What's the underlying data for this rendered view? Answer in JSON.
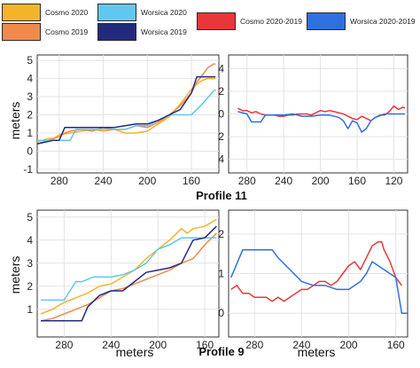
{
  "legend": {
    "items": [
      {
        "label": "Cosmo 2020",
        "color": "#f3b42a"
      },
      {
        "label": "Worsica 2020",
        "color": "#5fc8ee"
      },
      {
        "label": "Cosmo 2020-2019",
        "color": "#e8373b"
      },
      {
        "label": "Worsica 2020-2019",
        "color": "#2f6fe0"
      },
      {
        "label": "Cosmo 2019",
        "color": "#f08a4b"
      },
      {
        "label": "Worsica 2019",
        "color": "#232a7e"
      }
    ]
  },
  "chart_data": [
    {
      "type": "line",
      "panel": "profile-11-elevation",
      "ylabel": "meters",
      "xlabel": "",
      "title": "Profile 11",
      "xlim": [
        300,
        135
      ],
      "ylim": [
        -1.2,
        5.3
      ],
      "xticks": [
        280,
        240,
        200,
        160
      ],
      "yticks": [
        -1,
        0,
        1,
        2,
        3,
        4,
        5
      ],
      "grid": true,
      "series": [
        {
          "name": "Cosmo 2020",
          "color": "#f3b42a",
          "x": [
            300,
            290,
            285,
            280,
            270,
            260,
            250,
            240,
            230,
            220,
            210,
            200,
            190,
            180,
            170,
            165,
            160,
            155,
            150,
            145,
            140,
            138
          ],
          "y": [
            0.5,
            0.7,
            0.7,
            0.9,
            1.0,
            1.1,
            1.2,
            1.1,
            1.2,
            1.0,
            1.0,
            1.1,
            1.5,
            1.9,
            2.6,
            3.0,
            3.4,
            3.7,
            3.9,
            4.0,
            4.0,
            4.0
          ]
        },
        {
          "name": "Cosmo 2019",
          "color": "#f08a4b",
          "x": [
            300,
            290,
            280,
            275,
            270,
            260,
            250,
            240,
            230,
            220,
            210,
            200,
            190,
            180,
            170,
            160,
            155,
            150,
            145,
            140,
            138
          ],
          "y": [
            0.4,
            0.6,
            0.8,
            1.0,
            1.1,
            1.2,
            1.1,
            1.3,
            1.2,
            1.2,
            1.4,
            1.3,
            1.6,
            2.0,
            2.5,
            3.2,
            3.8,
            4.2,
            4.6,
            4.8,
            4.8
          ]
        },
        {
          "name": "Worsica 2020",
          "color": "#5fc8ee",
          "x": [
            300,
            280,
            270,
            265,
            250,
            230,
            220,
            210,
            200,
            190,
            180,
            175,
            170,
            160,
            150,
            140,
            138
          ],
          "y": [
            0.6,
            0.6,
            0.6,
            1.2,
            1.2,
            1.2,
            1.2,
            1.4,
            1.4,
            1.7,
            2.0,
            2.0,
            2.0,
            2.0,
            2.6,
            3.3,
            3.4
          ]
        },
        {
          "name": "Worsica 2019",
          "color": "#232a7e",
          "x": [
            300,
            285,
            280,
            275,
            250,
            240,
            230,
            210,
            200,
            190,
            180,
            170,
            160,
            155,
            150,
            145,
            140,
            138
          ],
          "y": [
            0.4,
            0.6,
            0.6,
            1.3,
            1.3,
            1.3,
            1.3,
            1.5,
            1.5,
            1.7,
            2.0,
            2.3,
            3.2,
            4.1,
            4.1,
            4.1,
            4.1,
            4.1
          ]
        }
      ]
    },
    {
      "type": "line",
      "panel": "profile-11-difference",
      "xlabel": "",
      "ylabel": "",
      "xlim": [
        300,
        105
      ],
      "ylim": [
        -5.2,
        5.2
      ],
      "xticks": [
        280,
        240,
        200,
        160,
        120
      ],
      "yticks": [
        4,
        2,
        0,
        2,
        4
      ],
      "ytick_values": [
        4,
        2,
        0,
        -2,
        -4
      ],
      "grid": true,
      "series": [
        {
          "name": "Cosmo 2020-2019",
          "color": "#e8373b",
          "x": [
            290,
            285,
            280,
            275,
            270,
            265,
            260,
            255,
            250,
            245,
            240,
            235,
            230,
            225,
            220,
            215,
            210,
            205,
            200,
            195,
            190,
            185,
            180,
            175,
            170,
            165,
            160,
            155,
            150,
            145,
            140,
            135,
            130,
            125,
            120,
            115,
            110,
            108
          ],
          "y": [
            0.5,
            0.3,
            0.3,
            0.1,
            0.2,
            0.0,
            -0.1,
            -0.1,
            -0.1,
            -0.2,
            -0.2,
            -0.1,
            -0.1,
            0.0,
            0.0,
            0.0,
            -0.1,
            0.1,
            0.3,
            0.2,
            0.3,
            0.2,
            0.1,
            0.0,
            -0.2,
            -0.4,
            -0.5,
            -0.2,
            -0.4,
            -0.6,
            -0.3,
            -0.1,
            -0.1,
            0.2,
            0.7,
            0.4,
            0.6,
            0.5
          ]
        },
        {
          "name": "Worsica 2020-2019",
          "color": "#2f6fe0",
          "x": [
            290,
            280,
            275,
            270,
            265,
            260,
            250,
            240,
            230,
            220,
            210,
            200,
            190,
            180,
            175,
            170,
            165,
            160,
            155,
            150,
            145,
            140,
            130,
            120,
            110,
            108
          ],
          "y": [
            0.2,
            0.0,
            -0.7,
            -0.7,
            -0.7,
            -0.1,
            -0.1,
            -0.1,
            0.0,
            -0.2,
            -0.2,
            -0.1,
            -0.1,
            -0.3,
            -0.6,
            -1.3,
            -0.6,
            -0.8,
            -1.6,
            -1.3,
            -0.6,
            -0.3,
            0.0,
            0.0,
            0.0,
            0.0
          ]
        }
      ]
    },
    {
      "type": "line",
      "panel": "profile-9-elevation",
      "ylabel": "meters",
      "xlabel": "meters",
      "title": "Profile 9",
      "xlim": [
        303,
        148
      ],
      "ylim": [
        -0.2,
        5.3
      ],
      "xticks": [
        280,
        240,
        200,
        160
      ],
      "yticks": [
        1,
        2,
        3,
        4,
        5
      ],
      "grid": true,
      "series": [
        {
          "name": "Cosmo 2020",
          "color": "#f3b42a",
          "x": [
            300,
            290,
            280,
            270,
            260,
            250,
            240,
            230,
            220,
            210,
            200,
            190,
            180,
            175,
            170,
            160,
            150
          ],
          "y": [
            0.8,
            1.0,
            1.3,
            1.5,
            1.7,
            2.0,
            2.1,
            2.4,
            2.7,
            3.2,
            3.6,
            4.0,
            4.5,
            4.3,
            4.5,
            4.6,
            4.9
          ]
        },
        {
          "name": "Cosmo 2019",
          "color": "#f08a4b",
          "x": [
            300,
            290,
            280,
            270,
            260,
            250,
            240,
            230,
            220,
            210,
            200,
            190,
            180,
            170,
            160,
            150
          ],
          "y": [
            0.5,
            0.6,
            0.8,
            1.0,
            1.2,
            1.5,
            1.8,
            1.9,
            2.1,
            2.3,
            2.5,
            2.7,
            3.0,
            3.2,
            3.8,
            4.3
          ]
        },
        {
          "name": "Worsica 2020",
          "color": "#5fc8ee",
          "x": [
            300,
            285,
            280,
            270,
            265,
            255,
            240,
            230,
            220,
            210,
            200,
            190,
            180,
            170,
            160,
            150
          ],
          "y": [
            1.4,
            1.4,
            1.4,
            2.2,
            2.2,
            2.4,
            2.4,
            2.5,
            2.7,
            3.0,
            3.6,
            3.8,
            4.1,
            4.1,
            4.1,
            4.1
          ]
        },
        {
          "name": "Worsica 2019",
          "color": "#232a7e",
          "x": [
            300,
            290,
            280,
            265,
            260,
            250,
            240,
            230,
            220,
            210,
            200,
            190,
            180,
            175,
            170,
            160,
            150
          ],
          "y": [
            0.5,
            0.5,
            0.5,
            0.5,
            1.1,
            1.6,
            1.8,
            1.8,
            2.2,
            2.6,
            2.7,
            2.8,
            3.0,
            3.5,
            4.0,
            4.1,
            4.6
          ]
        }
      ]
    },
    {
      "type": "line",
      "panel": "profile-9-difference",
      "xlabel": "meters",
      "ylabel": "",
      "xlim": [
        302,
        150
      ],
      "ylim": [
        -0.6,
        2.6
      ],
      "xticks": [
        280,
        240,
        200,
        160
      ],
      "yticks": [
        0,
        1,
        2
      ],
      "grid": true,
      "series": [
        {
          "name": "Cosmo 2020-2019",
          "color": "#e8373b",
          "x": [
            300,
            295,
            290,
            285,
            280,
            275,
            270,
            265,
            260,
            255,
            250,
            245,
            240,
            235,
            230,
            225,
            220,
            215,
            210,
            205,
            200,
            195,
            190,
            185,
            180,
            175,
            172,
            170,
            165,
            160,
            155
          ],
          "y": [
            0.6,
            0.7,
            0.5,
            0.5,
            0.4,
            0.4,
            0.4,
            0.3,
            0.4,
            0.3,
            0.4,
            0.5,
            0.6,
            0.6,
            0.7,
            0.8,
            0.8,
            0.7,
            0.8,
            1.0,
            1.2,
            1.3,
            1.1,
            1.4,
            1.7,
            1.8,
            1.8,
            1.6,
            1.3,
            0.9,
            0.7
          ]
        },
        {
          "name": "Worsica 2020-2019",
          "color": "#2f6fe0",
          "x": [
            300,
            290,
            270,
            265,
            260,
            250,
            240,
            230,
            220,
            210,
            200,
            190,
            185,
            180,
            175,
            160,
            155,
            150
          ],
          "y": [
            0.9,
            1.6,
            1.6,
            1.6,
            1.4,
            1.1,
            0.8,
            0.7,
            0.7,
            0.6,
            0.6,
            0.8,
            1.0,
            1.3,
            1.2,
            0.9,
            0.0,
            0.0
          ]
        }
      ]
    }
  ]
}
